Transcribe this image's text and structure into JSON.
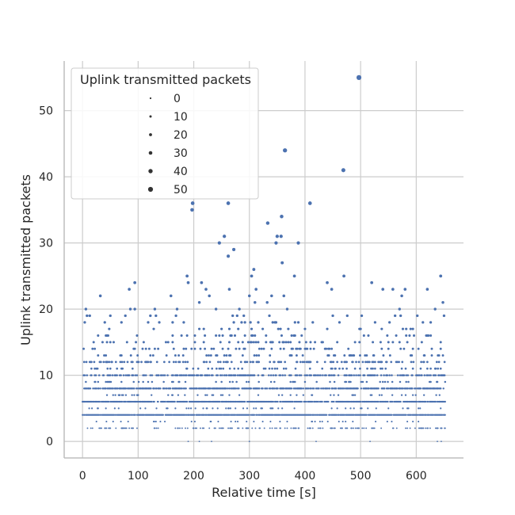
{
  "chart_data": {
    "type": "scatter",
    "title": "",
    "xlabel": "Relative time [s]",
    "ylabel": "Uplink transmitted packets",
    "xlim": [
      -33,
      685
    ],
    "ylim": [
      -2.5,
      57.5
    ],
    "x_ticks": [
      0,
      100,
      200,
      300,
      400,
      500,
      600
    ],
    "y_ticks": [
      0,
      10,
      20,
      30,
      40,
      50
    ],
    "grid": true,
    "legend": {
      "title": "Uplink transmitted packets",
      "placement": "top-left",
      "size_entries": [
        0,
        10,
        20,
        30,
        40,
        50
      ]
    },
    "marker_color": "#4c72b0",
    "size_encodes": "y",
    "notable_points": [
      {
        "x": 497,
        "y": 55
      },
      {
        "x": 364,
        "y": 44
      },
      {
        "x": 469,
        "y": 41
      },
      {
        "x": 198,
        "y": 36
      },
      {
        "x": 262,
        "y": 36
      },
      {
        "x": 409,
        "y": 36
      },
      {
        "x": 197,
        "y": 35
      },
      {
        "x": 358,
        "y": 34
      },
      {
        "x": 333,
        "y": 33
      },
      {
        "x": 255,
        "y": 31
      },
      {
        "x": 350,
        "y": 31
      },
      {
        "x": 357,
        "y": 31
      },
      {
        "x": 246,
        "y": 30
      },
      {
        "x": 348,
        "y": 30
      },
      {
        "x": 388,
        "y": 30
      },
      {
        "x": 272,
        "y": 29
      },
      {
        "x": 262,
        "y": 28
      },
      {
        "x": 359,
        "y": 27
      },
      {
        "x": 308,
        "y": 26
      },
      {
        "x": 188,
        "y": 25
      },
      {
        "x": 304,
        "y": 25
      },
      {
        "x": 470,
        "y": 25
      },
      {
        "x": 644,
        "y": 25
      },
      {
        "x": 381,
        "y": 25
      },
      {
        "x": 190,
        "y": 24
      },
      {
        "x": 440,
        "y": 24
      },
      {
        "x": 222,
        "y": 23
      },
      {
        "x": 620,
        "y": 23
      },
      {
        "x": 32,
        "y": 22
      },
      {
        "x": 159,
        "y": 22
      },
      {
        "x": 648,
        "y": 21
      },
      {
        "x": 130,
        "y": 20
      },
      {
        "x": 634,
        "y": 20
      },
      {
        "x": 13,
        "y": 19
      },
      {
        "x": 77,
        "y": 19
      }
    ]
  }
}
